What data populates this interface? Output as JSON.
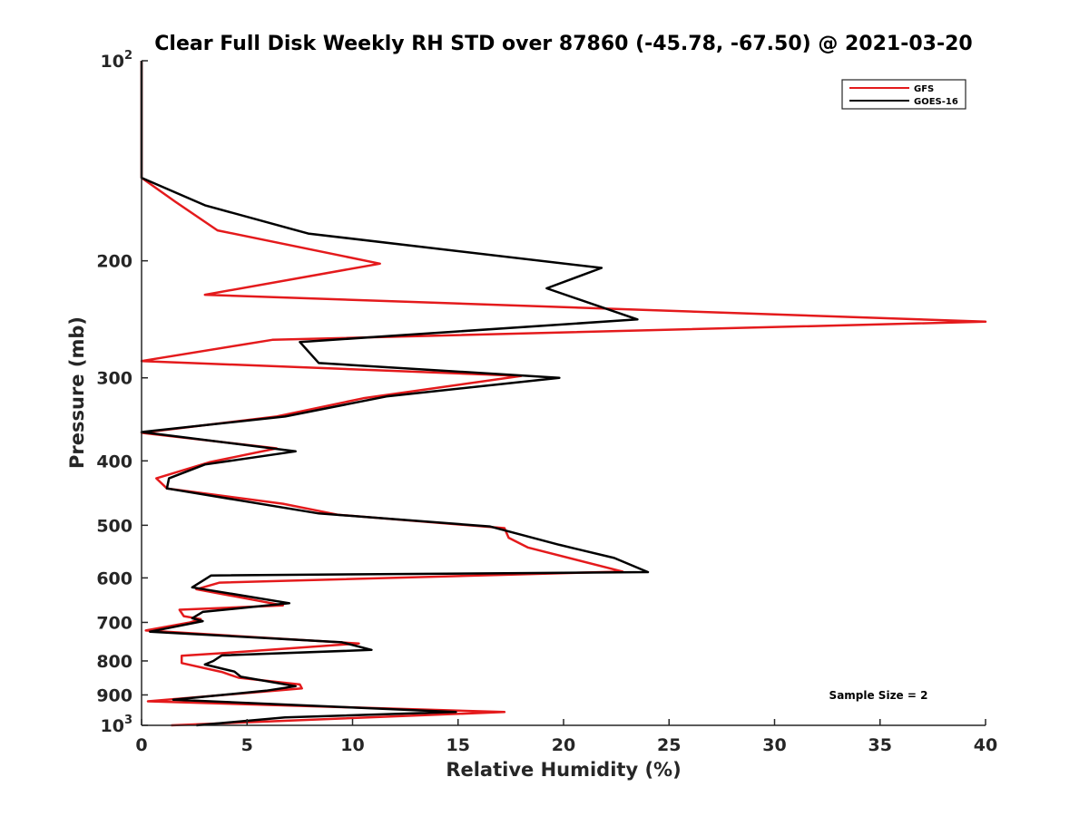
{
  "chart_data": {
    "type": "line",
    "title": "Clear Full Disk Weekly RH STD over 87860 (-45.78, -67.50) @ 2021-03-20",
    "xlabel": "Relative Humidity (%)",
    "ylabel": "Pressure (mb)",
    "xlim": [
      0,
      40
    ],
    "ylim": [
      100,
      1000
    ],
    "y_scale": "log",
    "y_reversed": true,
    "x_ticks": [
      0,
      5,
      10,
      15,
      20,
      25,
      30,
      35,
      40
    ],
    "x_tick_labels": [
      "0",
      "5",
      "10",
      "15",
      "20",
      "25",
      "30",
      "35",
      "40"
    ],
    "y_ticks": [
      200,
      300,
      400,
      500,
      600,
      700,
      800,
      900
    ],
    "y_tick_labels": [
      "200",
      "300",
      "400",
      "500",
      "600",
      "700",
      "800",
      "900"
    ],
    "y_decade_ticks": [
      {
        "value": 100,
        "base": "10",
        "exp": "2"
      },
      {
        "value": 1000,
        "base": "10",
        "exp": "3"
      }
    ],
    "grid": false,
    "legend_position": "top-right",
    "annotation": "Sample Size = 2",
    "series": [
      {
        "name": "GFS",
        "color": "#e41a1c",
        "points": [
          [
            0,
            100
          ],
          [
            0,
            150
          ],
          [
            1.6,
            163
          ],
          [
            3.6,
            180
          ],
          [
            11.3,
            202
          ],
          [
            3.0,
            225
          ],
          [
            40,
            247
          ],
          [
            6.2,
            263
          ],
          [
            0,
            283
          ],
          [
            18.0,
            298
          ],
          [
            10.5,
            322
          ],
          [
            6.4,
            343
          ],
          [
            0,
            363
          ],
          [
            6.4,
            383
          ],
          [
            3.2,
            402
          ],
          [
            0.7,
            425
          ],
          [
            1.2,
            440
          ],
          [
            6.7,
            464
          ],
          [
            9.3,
            482
          ],
          [
            17.2,
            505
          ],
          [
            17.4,
            522
          ],
          [
            18.3,
            540
          ],
          [
            22.8,
            587
          ],
          [
            3.7,
            610
          ],
          [
            2.6,
            624
          ],
          [
            6.7,
            660
          ],
          [
            1.8,
            670
          ],
          [
            2.0,
            685
          ],
          [
            2.8,
            692
          ],
          [
            2.3,
            700
          ],
          [
            0.2,
            720
          ],
          [
            10.3,
            753
          ],
          [
            4.0,
            778
          ],
          [
            1.9,
            786
          ],
          [
            1.9,
            806
          ],
          [
            3.8,
            831
          ],
          [
            4.6,
            848
          ],
          [
            7.5,
            868
          ],
          [
            7.6,
            880
          ],
          [
            0.3,
            920
          ],
          [
            17.2,
            955
          ],
          [
            1.4,
            1000
          ]
        ]
      },
      {
        "name": "GOES-16",
        "color": "#000000",
        "points": [
          [
            0,
            100
          ],
          [
            0,
            150
          ],
          [
            3.0,
            165
          ],
          [
            7.9,
            182
          ],
          [
            21.8,
            205
          ],
          [
            19.2,
            220
          ],
          [
            23.5,
            245
          ],
          [
            7.5,
            265
          ],
          [
            8.4,
            285
          ],
          [
            19.8,
            300
          ],
          [
            11.6,
            320
          ],
          [
            6.8,
            343
          ],
          [
            0,
            362
          ],
          [
            7.3,
            387
          ],
          [
            3.0,
            405
          ],
          [
            1.3,
            425
          ],
          [
            1.2,
            440
          ],
          [
            8.4,
            480
          ],
          [
            16.5,
            502
          ],
          [
            19.8,
            535
          ],
          [
            22.4,
            560
          ],
          [
            24.0,
            588
          ],
          [
            3.3,
            595
          ],
          [
            2.4,
            620
          ],
          [
            7.0,
            655
          ],
          [
            2.9,
            675
          ],
          [
            2.4,
            690
          ],
          [
            2.9,
            697
          ],
          [
            0.4,
            723
          ],
          [
            9.5,
            750
          ],
          [
            10.9,
            770
          ],
          [
            3.8,
            785
          ],
          [
            3.4,
            800
          ],
          [
            3.0,
            810
          ],
          [
            4.4,
            830
          ],
          [
            4.7,
            845
          ],
          [
            7.3,
            873
          ],
          [
            5.9,
            887
          ],
          [
            1.5,
            915
          ],
          [
            14.9,
            955
          ],
          [
            6.8,
            973
          ],
          [
            2.6,
            1000
          ]
        ]
      }
    ]
  }
}
